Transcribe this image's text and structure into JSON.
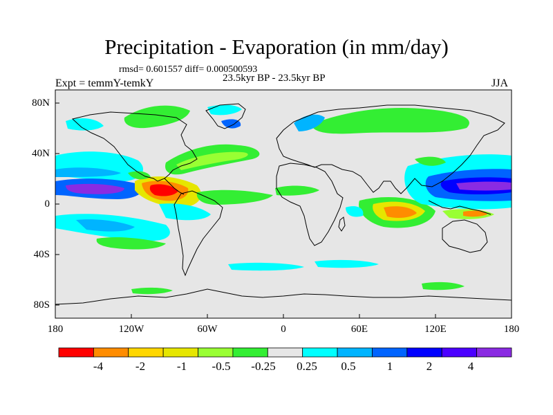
{
  "title": "Precipitation - Evaporation (in mm/day)",
  "stats": "rmsd= 0.601557 diff= 0.000500593",
  "period": "23.5kyr BP - 23.5kyr BP",
  "experiment": "Expt = temmY-temkY",
  "season": "JJA",
  "map": {
    "lat_labels": [
      "80N",
      "40N",
      "0",
      "40S",
      "80S"
    ],
    "lon_labels": [
      "180",
      "120W",
      "60W",
      "0",
      "60E",
      "120E",
      "180"
    ],
    "background_color": "#e6e6e6"
  },
  "colorbar": {
    "labels": [
      "-4",
      "-2",
      "-1",
      "-0.5",
      "-0.25",
      "0.25",
      "0.5",
      "1",
      "2",
      "4"
    ],
    "colors": [
      "#ff0000",
      "#ff8c00",
      "#ffd700",
      "#e6e600",
      "#99ff33",
      "#33ee33",
      "#e6e6e6",
      "#00ffff",
      "#00b4ff",
      "#0064ff",
      "#0000ff",
      "#4b00ff",
      "#8a2be2"
    ]
  }
}
